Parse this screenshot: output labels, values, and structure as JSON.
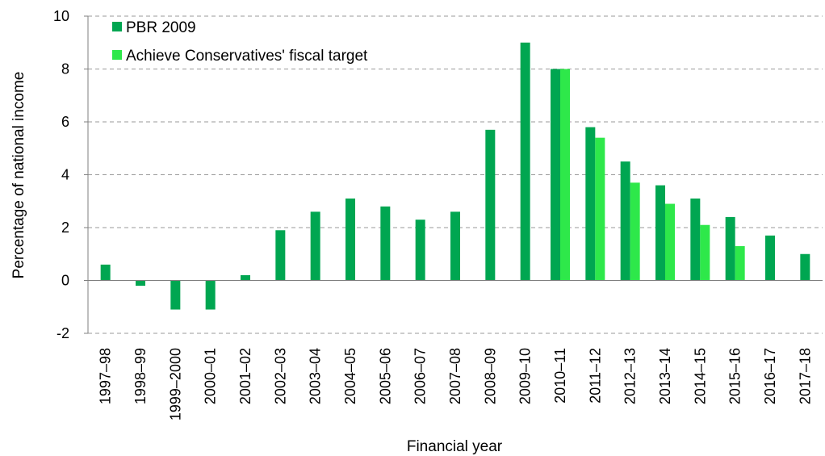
{
  "chart_data": {
    "type": "bar",
    "xlabel": "Financial year",
    "ylabel": "Percentage of national income",
    "ylim": [
      -2,
      10
    ],
    "yticks": [
      -2,
      0,
      2,
      4,
      6,
      8,
      10
    ],
    "grid": true,
    "legend_position": "top-left",
    "categories": [
      "1997–98",
      "1998–99",
      "1999–2000",
      "2000–01",
      "2001–02",
      "2002–03",
      "2003–04",
      "2004–05",
      "2005–06",
      "2006–07",
      "2007–08",
      "2008–09",
      "2009–10",
      "2010–11",
      "2011–12",
      "2012–13",
      "2013–14",
      "2014–15",
      "2015–16",
      "2016–17",
      "2017–18"
    ],
    "series": [
      {
        "name": "PBR 2009",
        "color": "#00a651",
        "values": [
          0.6,
          -0.2,
          -1.1,
          -1.1,
          0.2,
          1.9,
          2.6,
          3.1,
          2.8,
          2.3,
          2.6,
          5.7,
          9.0,
          8.0,
          5.8,
          4.5,
          3.6,
          3.1,
          2.4,
          1.7,
          1.0
        ]
      },
      {
        "name": "Achieve Conservatives' fiscal target",
        "color": "#2ee84a",
        "values": [
          null,
          null,
          null,
          null,
          null,
          null,
          null,
          null,
          null,
          null,
          null,
          null,
          null,
          8.0,
          5.4,
          3.7,
          2.9,
          2.1,
          1.3,
          null,
          null
        ]
      }
    ]
  }
}
